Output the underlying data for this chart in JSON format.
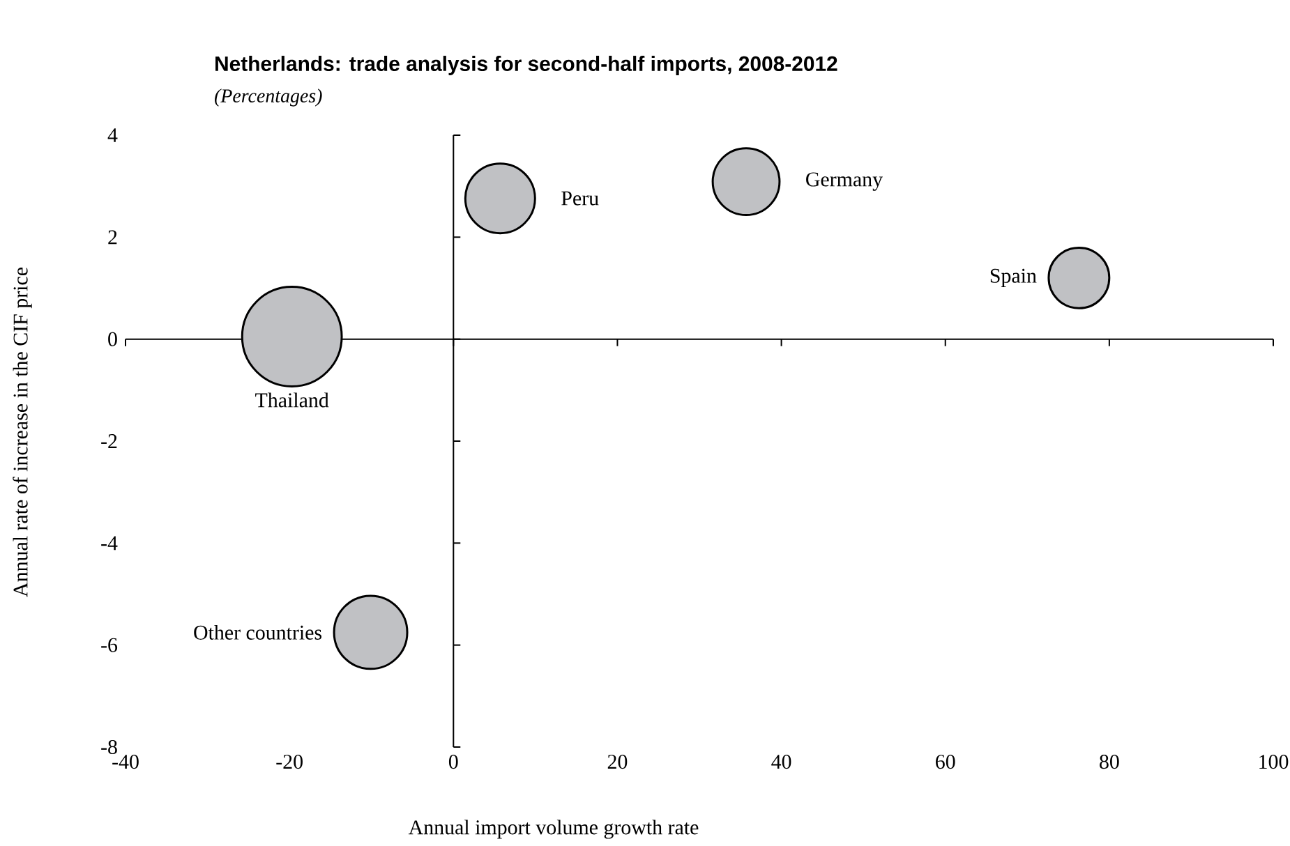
{
  "chart_data": {
    "type": "bubble",
    "title": "Netherlands: trade analysis for second-half imports, 2008-2012",
    "subtitle": "(Percentages)",
    "xlabel": "Annual import volume growth rate",
    "ylabel": "Annual rate of increase in the CIF price",
    "xlim": [
      -40,
      100
    ],
    "ylim": [
      -8,
      4
    ],
    "xticks": [
      -40,
      -20,
      0,
      20,
      40,
      60,
      80,
      100
    ],
    "yticks": [
      -8,
      -6,
      -4,
      -2,
      0,
      2,
      4
    ],
    "series": [
      {
        "color": "#c0c1c4",
        "x": [
          -19.7,
          5.7,
          35.7,
          76.3,
          -10.1
        ],
        "values": [
          0.05,
          2.76,
          3.09,
          1.2,
          -5.75
        ],
        "sizes": [
          1,
          0.49,
          0.45,
          0.37,
          0.54
        ]
      }
    ],
    "annotations": [
      {
        "text": "Thailand",
        "x": -19.7,
        "y": 0.05
      },
      {
        "text": "Peru",
        "x": 5.7,
        "y": 2.76
      },
      {
        "text": "Germany",
        "x": 35.7,
        "y": 3.09
      },
      {
        "text": "Spain",
        "x": 76.3,
        "y": 1.2
      },
      {
        "text": "Other countries",
        "x": -10.1,
        "y": -5.75
      }
    ]
  }
}
